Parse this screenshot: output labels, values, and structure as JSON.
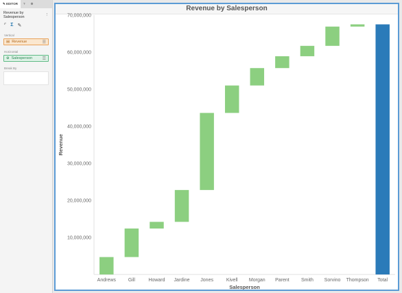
{
  "editor": {
    "tabs": [
      "✎ EDITOR",
      "?",
      "⚙"
    ],
    "title": "Revenue by Salesperson",
    "menu_icon": "⋮",
    "vertical_label": "Vertical",
    "vertical_field": "Revenue",
    "horizontal_label": "Horizontal",
    "horizontal_field": "Salesperson",
    "breakby_label": "Break By",
    "icons": [
      "axis-icon",
      "sigma-icon",
      "brush-icon"
    ]
  },
  "colors": {
    "step": "#8ccf80",
    "total": "#2b7bb9",
    "accent": "#5b9bd5"
  },
  "chart_data": {
    "type": "waterfall",
    "title": "Revenue by Salesperson",
    "xlabel": "Salesperson",
    "ylabel": "Revenue",
    "ylim": [
      0,
      70000000
    ],
    "yticks": [
      10000000,
      20000000,
      30000000,
      40000000,
      50000000,
      60000000,
      70000000
    ],
    "ytick_labels": [
      "10,000,000",
      "20,000,000",
      "30,000,000",
      "40,000,000",
      "50,000,000",
      "60,000,000",
      "70,000,000"
    ],
    "categories": [
      "Andrews",
      "Gill",
      "Howard",
      "Jardine",
      "Jones",
      "Kivell",
      "Morgan",
      "Parent",
      "Smith",
      "Sorvino",
      "Thompson",
      "Total"
    ],
    "values": [
      4700000,
      7700000,
      1800000,
      8600000,
      20800000,
      7400000,
      4700000,
      3200000,
      2800000,
      5200000,
      600000,
      67500000
    ],
    "total_index": 11
  }
}
